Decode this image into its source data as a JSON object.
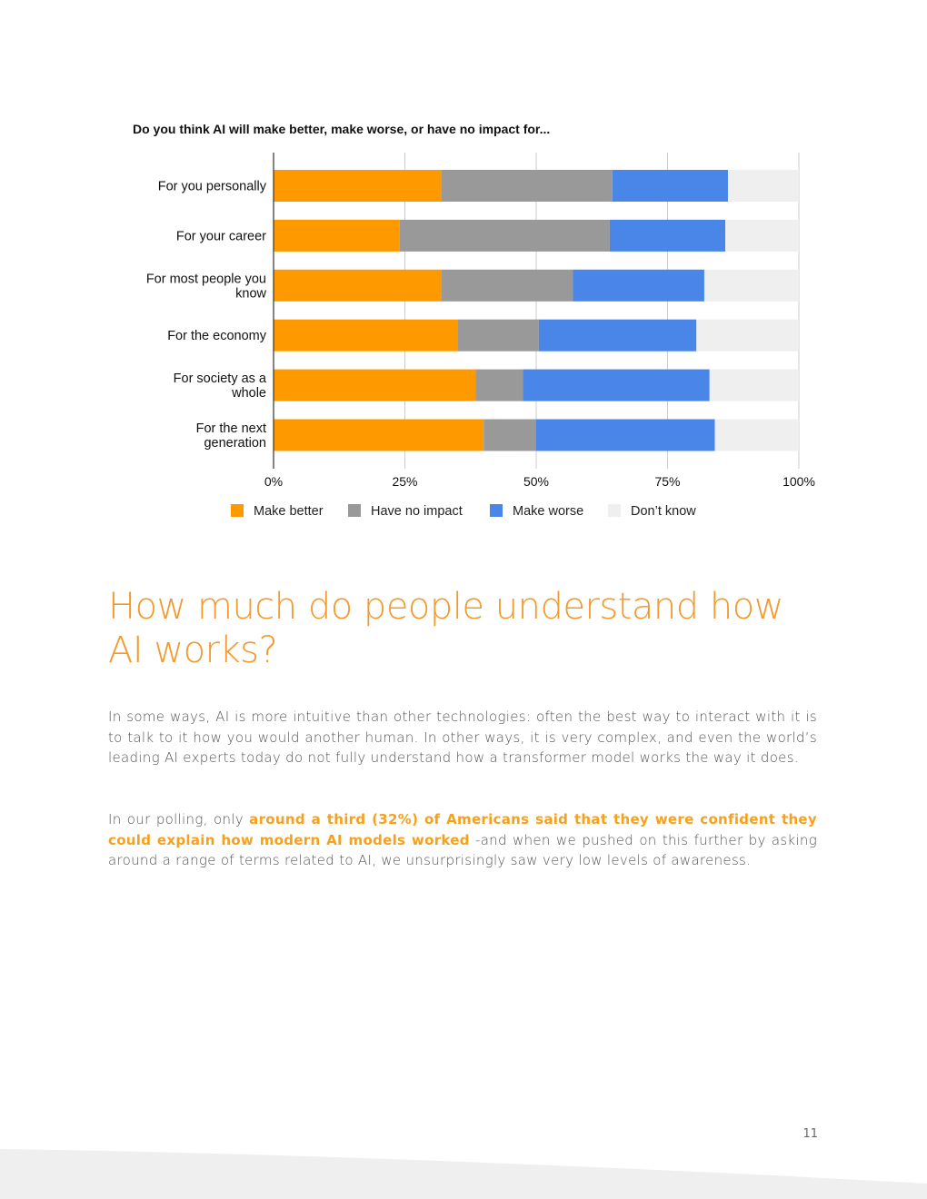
{
  "chart_data": {
    "type": "bar",
    "orientation": "horizontal",
    "stacked": true,
    "title": "Do you think AI will make better, make worse, or have no impact for...",
    "categories": [
      "For you personally",
      "For your career",
      "For most people you know",
      "For the economy",
      "For society as a whole",
      "For the next generation"
    ],
    "category_lines": [
      [
        "For you personally"
      ],
      [
        "For your career"
      ],
      [
        "For most people you",
        "know"
      ],
      [
        "For the economy"
      ],
      [
        "For society as a",
        "whole"
      ],
      [
        "For the next",
        "generation"
      ]
    ],
    "series": [
      {
        "name": "Make better",
        "color": "#ff9900",
        "values": [
          32,
          24,
          32,
          35,
          38.5,
          40
        ]
      },
      {
        "name": "Have no impact",
        "color": "#999999",
        "values": [
          32.5,
          40,
          25,
          15.5,
          9,
          10
        ]
      },
      {
        "name": "Make worse",
        "color": "#4a86e8",
        "values": [
          22,
          22,
          25,
          30,
          35.5,
          34
        ]
      },
      {
        "name": "Don’t know",
        "color": "#efefef",
        "values": [
          13.5,
          14,
          18,
          19.5,
          17,
          16
        ]
      }
    ],
    "xlim": [
      0,
      100
    ],
    "xticks": [
      0,
      25,
      50,
      75,
      100
    ],
    "xtick_labels": [
      "0%",
      "25%",
      "50%",
      "75%",
      "100%"
    ],
    "grid": true,
    "legend_position": "bottom"
  },
  "heading": "How much do people understand how AI works?",
  "paragraphs": {
    "p1": "In some ways, AI is more intuitive than other technologies: often the best way to interact with it is to talk to it how you would another human. In other ways, it is very complex, and even the world’s leading AI experts today do not fully understand how a transformer model works the way it does.",
    "p2_pre": "In our polling, only ",
    "p2_highlight": "around a third (32%) of Americans said that they were confident they could explain how modern AI models worked",
    "p2_post": " -and when we pushed on this further by asking around a range of terms related to AI, we unsurprisingly saw very low levels of awareness."
  },
  "page_number": "11"
}
